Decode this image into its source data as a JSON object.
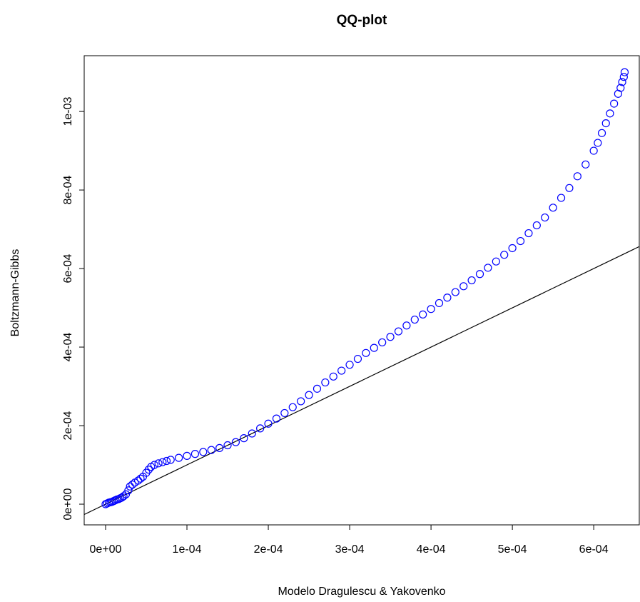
{
  "chart_data": {
    "type": "scatter",
    "title": "QQ-plot",
    "x_label": "Modelo Dragulescu & Yakovenko",
    "y_label": "Boltzmann-Gibbs",
    "marker": "open-circle",
    "series": [
      {
        "color": "#0000ff",
        "x": [
          0,
          2e-06,
          4e-06,
          6e-06,
          8e-06,
          1e-05,
          1.2e-05,
          1.4e-05,
          1.6e-05,
          1.8e-05,
          2e-05,
          2.2e-05,
          2.5e-05,
          2.8e-05,
          3e-05,
          3.3e-05,
          3.6e-05,
          4e-05,
          4.3e-05,
          4.6e-05,
          5e-05,
          5.3e-05,
          5.6e-05,
          6e-05,
          6.5e-05,
          7e-05,
          7.5e-05,
          8e-05,
          9e-05,
          0.0001,
          0.00011,
          0.00012,
          0.00013,
          0.00014,
          0.00015,
          0.00016,
          0.00017,
          0.00018,
          0.00019,
          0.0002,
          0.00021,
          0.00022,
          0.00023,
          0.00024,
          0.00025,
          0.00026,
          0.00027,
          0.00028,
          0.00029,
          0.0003,
          0.00031,
          0.00032,
          0.00033,
          0.00034,
          0.00035,
          0.00036,
          0.00037,
          0.00038,
          0.00039,
          0.0004,
          0.00041,
          0.00042,
          0.00043,
          0.00044,
          0.00045,
          0.00046,
          0.00047,
          0.00048,
          0.00049,
          0.0005,
          0.00051,
          0.00052,
          0.00053,
          0.00054,
          0.00055,
          0.00056,
          0.00057,
          0.00058,
          0.00059,
          0.0006,
          0.000605,
          0.00061,
          0.000615,
          0.00062,
          0.000625,
          0.00063,
          0.000633,
          0.000635,
          0.000637,
          0.000638
        ],
        "values": [
          0,
          2e-06,
          4e-06,
          5e-06,
          6e-06,
          8e-06,
          1e-05,
          1.2e-05,
          1.3e-05,
          1.5e-05,
          1.7e-05,
          2e-05,
          2.5e-05,
          3.5e-05,
          4.5e-05,
          5e-05,
          5.5e-05,
          6e-05,
          6.5e-05,
          7e-05,
          8e-05,
          8.8e-05,
          9.5e-05,
          0.0001,
          0.000104,
          0.000107,
          0.00011,
          0.000113,
          0.000118,
          0.000123,
          0.000128,
          0.000133,
          0.000138,
          0.000143,
          0.00015,
          0.000158,
          0.000168,
          0.00018,
          0.000193,
          0.000205,
          0.000218,
          0.000232,
          0.000247,
          0.000262,
          0.000278,
          0.000294,
          0.00031,
          0.000325,
          0.00034,
          0.000355,
          0.00037,
          0.000385,
          0.000398,
          0.000412,
          0.000426,
          0.00044,
          0.000455,
          0.00047,
          0.000483,
          0.000497,
          0.000512,
          0.000526,
          0.00054,
          0.000555,
          0.00057,
          0.000586,
          0.000602,
          0.000618,
          0.000635,
          0.000652,
          0.00067,
          0.00069,
          0.00071,
          0.00073,
          0.000755,
          0.00078,
          0.000805,
          0.000835,
          0.000865,
          0.0009,
          0.00092,
          0.000945,
          0.00097,
          0.000995,
          0.00102,
          0.001045,
          0.00106,
          0.001075,
          0.001088,
          0.0011
        ]
      }
    ],
    "reference_line": {
      "intercept": 0,
      "slope": 1,
      "color": "#000000"
    },
    "xlim": [
      -2.63e-05,
      0.000656
    ],
    "ylim": [
      -5.27e-05,
      0.001142
    ],
    "xticks": [
      {
        "value": 0,
        "label": "0e+00"
      },
      {
        "value": 0.0001,
        "label": "1e-04"
      },
      {
        "value": 0.0002,
        "label": "2e-04"
      },
      {
        "value": 0.0003,
        "label": "3e-04"
      },
      {
        "value": 0.0004,
        "label": "4e-04"
      },
      {
        "value": 0.0005,
        "label": "5e-04"
      },
      {
        "value": 0.0006,
        "label": "6e-04"
      }
    ],
    "yticks": [
      {
        "value": 0,
        "label": "0e+00"
      },
      {
        "value": 0.0002,
        "label": "2e-04"
      },
      {
        "value": 0.0004,
        "label": "4e-04"
      },
      {
        "value": 0.0006,
        "label": "6e-04"
      },
      {
        "value": 0.0008,
        "label": "8e-04"
      },
      {
        "value": 0.001,
        "label": "1e-03"
      }
    ],
    "grid": false
  }
}
